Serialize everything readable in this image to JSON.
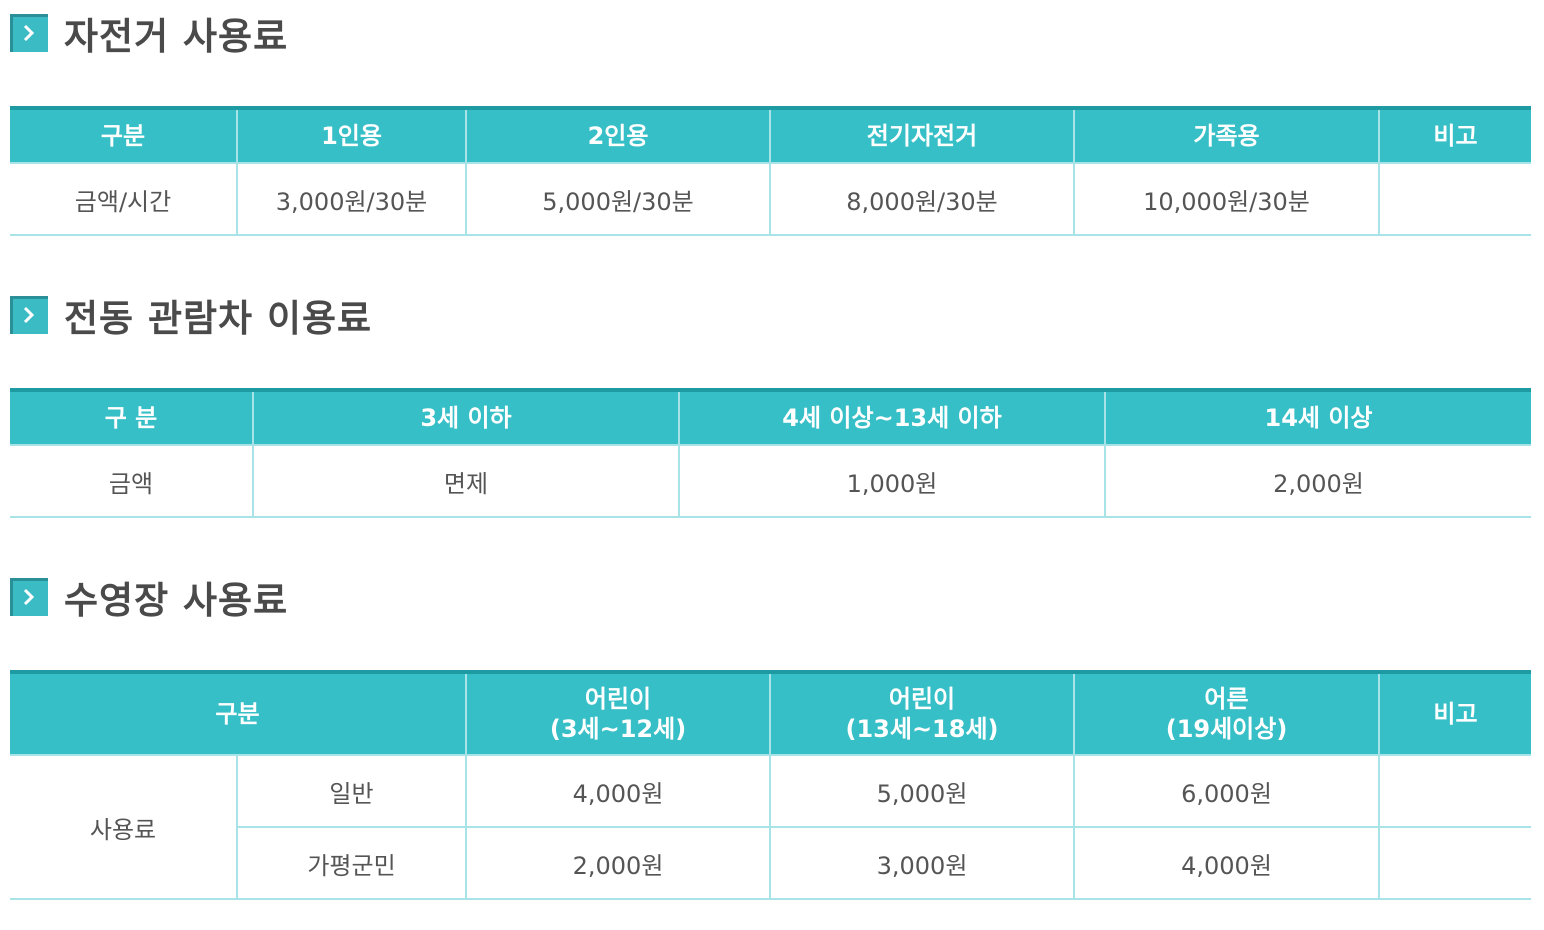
{
  "sections": [
    {
      "title": "자전거 사용료",
      "headers": [
        "구분",
        "1인용",
        "2인용",
        "전기자전거",
        "가족용",
        "비고"
      ],
      "rows": [
        [
          "금액/시간",
          "3,000원/30분",
          "5,000원/30분",
          "8,000원/30분",
          "10,000원/30분",
          ""
        ]
      ]
    },
    {
      "title": "전동 관람차 이용료",
      "headers": [
        "구 분",
        "3세 이하",
        "4세 이상~13세 이하",
        "14세 이상"
      ],
      "rows": [
        [
          "금액",
          "면제",
          "1,000원",
          "2,000원"
        ]
      ]
    },
    {
      "title": "수영장 사용료",
      "headers": [
        {
          "line1": "구분",
          "line2": ""
        },
        {
          "line1": "어린이",
          "line2": "(3세~12세)"
        },
        {
          "line1": "어린이",
          "line2": "(13세~18세)"
        },
        {
          "line1": "어른",
          "line2": "(19세이상)"
        },
        {
          "line1": "비고",
          "line2": ""
        }
      ],
      "row_group_label": "사용료",
      "rows": [
        {
          "label": "일반",
          "values": [
            "4,000원",
            "5,000원",
            "6,000원",
            ""
          ]
        },
        {
          "label": "가평군민",
          "values": [
            "2,000원",
            "3,000원",
            "4,000원",
            ""
          ]
        }
      ]
    }
  ],
  "colors": {
    "header_bg": "#36bfc6",
    "header_top_border": "#1e9aa3",
    "cell_border": "#a7e3e7",
    "title_icon": "#3bbcc5",
    "title_text": "#4a4a4a"
  },
  "icons": {
    "section_marker": "chevron-right-icon"
  }
}
